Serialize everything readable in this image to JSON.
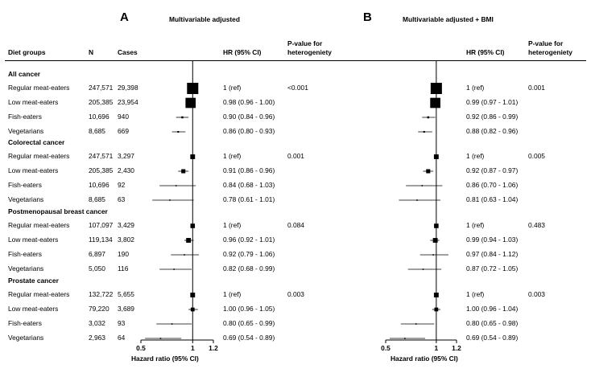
{
  "panel_a": {
    "letter": "A",
    "title": "Multivariable adjusted"
  },
  "panel_b": {
    "letter": "B",
    "title": "Multivariable adjusted + BMI"
  },
  "headers": {
    "diet_groups": "Diet groups",
    "n": "N",
    "cases": "Cases",
    "hr": "HR (95% CI)",
    "p_line1": "P-value for",
    "p_line2": "heterogeniety"
  },
  "axis": {
    "label": "Hazard ratio (95% CI)",
    "ticks": [
      {
        "value": 0.5,
        "label": "0.5"
      },
      {
        "value": 1,
        "label": "1"
      },
      {
        "value": 1.2,
        "label": "1.2"
      }
    ]
  },
  "chart_data": [
    {
      "type": "forest",
      "title": "Multivariable adjusted",
      "xlabel": "Hazard ratio (95% CI)",
      "xlim": [
        0.5,
        1.2
      ],
      "reference_line": 1,
      "groups": [
        {
          "name": "All cancer",
          "p_value": "<0.001",
          "rows": [
            {
              "diet": "Regular meat-eaters",
              "n": "247,571",
              "cases": "29,398",
              "hr": 1.0,
              "lo": 1.0,
              "hi": 1.0,
              "text": "1 (ref)"
            },
            {
              "diet": "Low meat-eaters",
              "n": "205,385",
              "cases": "23,954",
              "hr": 0.98,
              "lo": 0.96,
              "hi": 1.0,
              "text": "0.98 (0.96 - 1.00)"
            },
            {
              "diet": "Fish-eaters",
              "n": "10,696",
              "cases": "940",
              "hr": 0.9,
              "lo": 0.84,
              "hi": 0.96,
              "text": "0.90 (0.84 - 0.96)"
            },
            {
              "diet": "Vegetarians",
              "n": "8,685",
              "cases": "669",
              "hr": 0.86,
              "lo": 0.8,
              "hi": 0.93,
              "text": "0.86 (0.80 - 0.93)"
            }
          ]
        },
        {
          "name": "Colorectal cancer",
          "p_value": "0.001",
          "rows": [
            {
              "diet": "Regular meat-eaters",
              "n": "247,571",
              "cases": "3,297",
              "hr": 1.0,
              "lo": 1.0,
              "hi": 1.0,
              "text": "1 (ref)"
            },
            {
              "diet": "Low meat-eaters",
              "n": "205,385",
              "cases": "2,430",
              "hr": 0.91,
              "lo": 0.86,
              "hi": 0.96,
              "text": "0.91 (0.86 - 0.96)"
            },
            {
              "diet": "Fish-eaters",
              "n": "10,696",
              "cases": "92",
              "hr": 0.84,
              "lo": 0.68,
              "hi": 1.03,
              "text": "0.84 (0.68 - 1.03)"
            },
            {
              "diet": "Vegetarians",
              "n": "8,685",
              "cases": "63",
              "hr": 0.78,
              "lo": 0.61,
              "hi": 1.01,
              "text": "0.78 (0.61 - 1.01)"
            }
          ]
        },
        {
          "name": "Postmenopausal breast cancer",
          "p_value": "0.084",
          "rows": [
            {
              "diet": "Regular meat-eaters",
              "n": "107,097",
              "cases": "3,429",
              "hr": 1.0,
              "lo": 1.0,
              "hi": 1.0,
              "text": "1 (ref)"
            },
            {
              "diet": "Low meat-eaters",
              "n": "119,134",
              "cases": "3,802",
              "hr": 0.96,
              "lo": 0.92,
              "hi": 1.01,
              "text": "0.96 (0.92 - 1.01)"
            },
            {
              "diet": "Fish-eaters",
              "n": "6,897",
              "cases": "190",
              "hr": 0.92,
              "lo": 0.79,
              "hi": 1.06,
              "text": "0.92 (0.79 - 1.06)"
            },
            {
              "diet": "Vegetarians",
              "n": "5,050",
              "cases": "116",
              "hr": 0.82,
              "lo": 0.68,
              "hi": 0.99,
              "text": "0.82 (0.68 - 0.99)"
            }
          ]
        },
        {
          "name": "Prostate cancer",
          "p_value": "0.003",
          "rows": [
            {
              "diet": "Regular meat-eaters",
              "n": "132,722",
              "cases": "5,655",
              "hr": 1.0,
              "lo": 1.0,
              "hi": 1.0,
              "text": "1 (ref)"
            },
            {
              "diet": "Low meat-eaters",
              "n": "79,220",
              "cases": "3,689",
              "hr": 1.0,
              "lo": 0.96,
              "hi": 1.05,
              "text": "1.00 (0.96 - 1.05)"
            },
            {
              "diet": "Fish-eaters",
              "n": "3,032",
              "cases": "93",
              "hr": 0.8,
              "lo": 0.65,
              "hi": 0.99,
              "text": "0.80 (0.65 - 0.99)"
            },
            {
              "diet": "Vegetarians",
              "n": "2,963",
              "cases": "64",
              "hr": 0.69,
              "lo": 0.54,
              "hi": 0.89,
              "text": "0.69 (0.54 - 0.89)"
            }
          ]
        }
      ]
    },
    {
      "type": "forest",
      "title": "Multivariable adjusted + BMI",
      "xlabel": "Hazard ratio (95% CI)",
      "xlim": [
        0.5,
        1.2
      ],
      "reference_line": 1,
      "groups": [
        {
          "name": "All cancer",
          "p_value": "0.001",
          "rows": [
            {
              "diet": "Regular meat-eaters",
              "hr": 1.0,
              "lo": 1.0,
              "hi": 1.0,
              "text": "1 (ref)"
            },
            {
              "diet": "Low meat-eaters",
              "hr": 0.99,
              "lo": 0.97,
              "hi": 1.01,
              "text": "0.99 (0.97 - 1.01)"
            },
            {
              "diet": "Fish-eaters",
              "hr": 0.92,
              "lo": 0.86,
              "hi": 0.99,
              "text": "0.92 (0.86 - 0.99)"
            },
            {
              "diet": "Vegetarians",
              "hr": 0.88,
              "lo": 0.82,
              "hi": 0.96,
              "text": "0.88 (0.82 - 0.96)"
            }
          ]
        },
        {
          "name": "Colorectal cancer",
          "p_value": "0.005",
          "rows": [
            {
              "diet": "Regular meat-eaters",
              "hr": 1.0,
              "lo": 1.0,
              "hi": 1.0,
              "text": "1 (ref)"
            },
            {
              "diet": "Low meat-eaters",
              "hr": 0.92,
              "lo": 0.87,
              "hi": 0.97,
              "text": "0.92 (0.87 - 0.97)"
            },
            {
              "diet": "Fish-eaters",
              "hr": 0.86,
              "lo": 0.7,
              "hi": 1.06,
              "text": "0.86 (0.70 - 1.06)"
            },
            {
              "diet": "Vegetarians",
              "hr": 0.81,
              "lo": 0.63,
              "hi": 1.04,
              "text": "0.81 (0.63 - 1.04)"
            }
          ]
        },
        {
          "name": "Postmenopausal breast cancer",
          "p_value": "0.483",
          "rows": [
            {
              "diet": "Regular meat-eaters",
              "hr": 1.0,
              "lo": 1.0,
              "hi": 1.0,
              "text": "1 (ref)"
            },
            {
              "diet": "Low meat-eaters",
              "hr": 0.99,
              "lo": 0.94,
              "hi": 1.03,
              "text": "0.99 (0.94 - 1.03)"
            },
            {
              "diet": "Fish-eaters",
              "hr": 0.97,
              "lo": 0.84,
              "hi": 1.12,
              "text": "0.97 (0.84 - 1.12)"
            },
            {
              "diet": "Vegetarians",
              "hr": 0.87,
              "lo": 0.72,
              "hi": 1.05,
              "text": "0.87 (0.72 - 1.05)"
            }
          ]
        },
        {
          "name": "Prostate cancer",
          "p_value": "0.003",
          "rows": [
            {
              "diet": "Regular meat-eaters",
              "hr": 1.0,
              "lo": 1.0,
              "hi": 1.0,
              "text": "1 (ref)"
            },
            {
              "diet": "Low meat-eaters",
              "hr": 1.0,
              "lo": 0.96,
              "hi": 1.04,
              "text": "1.00 (0.96 - 1.04)"
            },
            {
              "diet": "Fish-eaters",
              "hr": 0.8,
              "lo": 0.65,
              "hi": 0.98,
              "text": "0.80 (0.65 - 0.98)"
            },
            {
              "diet": "Vegetarians",
              "hr": 0.69,
              "lo": 0.54,
              "hi": 0.89,
              "text": "0.69 (0.54 - 0.89)"
            }
          ]
        }
      ]
    }
  ]
}
